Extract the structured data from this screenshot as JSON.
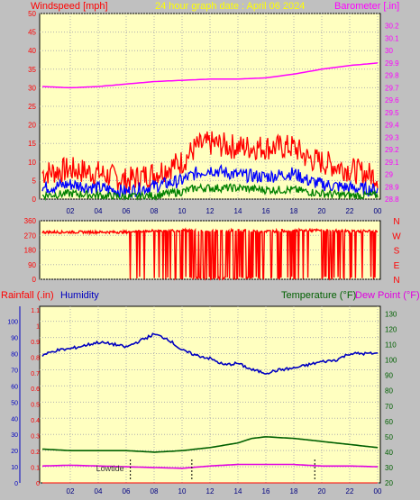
{
  "header": {
    "windspeed_label": "Windspeed [mph]",
    "date_label": "24 hour graph date : April 06 2024",
    "barometer_label": "Barometer [.in]"
  },
  "lower_header": {
    "rainfall_label": "Rainfall (.in)",
    "humidity_label": "Humidity",
    "temperature_label": "Temperature (°F)",
    "dewpoint_label": "Dew Point (°F)"
  },
  "colors": {
    "plot_bg": "#ffffc0",
    "frame": "#c0c0c0",
    "gust": "#ff0000",
    "avg": "#0000ff",
    "min": "#008000",
    "barometer": "#ff00ff",
    "humidity": "#0000c0",
    "temperature": "#006000",
    "dewpoint": "#e000e0",
    "title": "#ffff00"
  },
  "annotation": {
    "lowtide_label": "Lowtide"
  },
  "chart_data": [
    {
      "type": "line",
      "title": "24 hour graph date : April 06 2024",
      "x_tick_labels": [
        "02",
        "04",
        "06",
        "08",
        "10",
        "12",
        "14",
        "16",
        "18",
        "20",
        "22",
        "00"
      ],
      "y_left": {
        "label": "Windspeed [mph]",
        "range": [
          0,
          50
        ],
        "ticks": [
          "0",
          "5",
          "10",
          "15",
          "20",
          "25",
          "30",
          "35",
          "40",
          "45",
          "50"
        ]
      },
      "y_right": {
        "label": "Barometer [.in]",
        "range": [
          28.8,
          30.3
        ],
        "ticks": [
          "28.8",
          "28.9",
          "29",
          "29.1",
          "29.2",
          "29.3",
          "29.4",
          "29.5",
          "29.6",
          "29.7",
          "29.8",
          "29.9",
          "30",
          "30.1",
          "30.2"
        ]
      },
      "grid": true,
      "series": [
        {
          "name": "Gust",
          "axis": "left",
          "x": [
            0,
            2,
            4,
            6,
            8,
            10,
            11,
            12,
            14,
            16,
            18,
            19,
            20,
            22,
            24
          ],
          "y": [
            7,
            8,
            7,
            5,
            7,
            10,
            14,
            15,
            14,
            14,
            14,
            11,
            10,
            8,
            6
          ],
          "noise": 3.5
        },
        {
          "name": "Average",
          "axis": "left",
          "x": [
            0,
            2,
            4,
            6,
            8,
            10,
            11,
            12,
            14,
            16,
            18,
            19,
            20,
            22,
            24
          ],
          "y": [
            3,
            4,
            3,
            2,
            3.5,
            5,
            7,
            8,
            6.5,
            6,
            7,
            5,
            4,
            3,
            2.5
          ],
          "noise": 1.8
        },
        {
          "name": "Minimum",
          "axis": "left",
          "x": [
            0,
            2,
            4,
            6,
            8,
            10,
            11,
            12,
            14,
            16,
            18,
            19,
            20,
            22,
            24
          ],
          "y": [
            1,
            1.5,
            1,
            0.5,
            1,
            2,
            3,
            3,
            3,
            2.5,
            2.5,
            2,
            1.5,
            1,
            1
          ],
          "noise": 1.1
        },
        {
          "name": "Barometer",
          "axis": "right",
          "x": [
            0,
            2,
            4,
            6,
            8,
            10,
            12,
            14,
            16,
            18,
            20,
            22,
            24
          ],
          "y": [
            29.71,
            29.7,
            29.71,
            29.73,
            29.75,
            29.76,
            29.77,
            29.77,
            29.78,
            29.81,
            29.85,
            29.88,
            29.9
          ]
        }
      ]
    },
    {
      "type": "scatter",
      "title": "Wind direction",
      "x_tick_labels": [
        "02",
        "04",
        "06",
        "08",
        "10",
        "12",
        "14",
        "16",
        "18",
        "20",
        "22",
        "00"
      ],
      "y": {
        "range": [
          0,
          360
        ],
        "ticks": [
          "0",
          "90",
          "180",
          "270",
          "360"
        ]
      },
      "compass": [
        "N",
        "W",
        "S",
        "E",
        "N"
      ],
      "baseline_deg": 295,
      "series": [
        {
          "name": "Direction",
          "x": [
            0,
            6,
            6.5,
            9,
            10.5,
            12,
            14,
            16,
            18,
            20,
            22,
            24
          ],
          "y": [
            290,
            290,
            295,
            300,
            300,
            295,
            300,
            295,
            300,
            300,
            295,
            295
          ]
        }
      ]
    },
    {
      "type": "line",
      "x_tick_labels": [
        "02",
        "04",
        "06",
        "08",
        "10",
        "12",
        "14",
        "16",
        "18",
        "20",
        "22",
        "00"
      ],
      "y_outer_left": {
        "label": "Humidity",
        "range": [
          0,
          100
        ],
        "ticks": [
          "0",
          "10",
          "20",
          "30",
          "40",
          "50",
          "60",
          "70",
          "80",
          "90",
          "100"
        ]
      },
      "y_inner_left": {
        "label": "Rainfall (.in)",
        "range": [
          0,
          1.1
        ],
        "ticks": [
          "0",
          "0.1",
          "0.2",
          "0.3",
          "0.4",
          "0.5",
          "0.6",
          "0.7",
          "0.8",
          "0.9",
          "1",
          "1.1"
        ]
      },
      "y_right": {
        "label": "Temperature (°F)",
        "range": [
          20,
          135
        ],
        "ticks": [
          "20",
          "30",
          "40",
          "50",
          "60",
          "70",
          "80",
          "90",
          "100",
          "110",
          "120",
          "130"
        ]
      },
      "grid": true,
      "series": [
        {
          "name": "Humidity",
          "axis": "outer_left",
          "x": [
            0,
            1,
            2,
            3,
            4,
            5,
            6,
            7,
            8,
            9,
            10,
            11,
            12,
            13,
            14,
            15,
            16,
            17,
            18,
            19,
            20,
            21,
            22,
            23,
            24
          ],
          "y": [
            79,
            82,
            83,
            85,
            87,
            86,
            84,
            88,
            92,
            89,
            82,
            79,
            77,
            73,
            74,
            70,
            68,
            70,
            71,
            73,
            75,
            76,
            80,
            80,
            80
          ]
        },
        {
          "name": "Temperature",
          "axis": "right",
          "x": [
            0,
            2,
            4,
            6,
            8,
            10,
            12,
            14,
            15,
            16,
            18,
            20,
            22,
            24
          ],
          "y": [
            42,
            41,
            41,
            41,
            40,
            41,
            43,
            46,
            49,
            50,
            49,
            47,
            45,
            43
          ]
        },
        {
          "name": "Dew Point",
          "axis": "right",
          "x": [
            0,
            2,
            4,
            6,
            8,
            10,
            12,
            14,
            16,
            18,
            20,
            22,
            24
          ],
          "y": [
            31,
            31.5,
            31,
            30.5,
            30,
            29.5,
            31,
            32,
            32,
            32,
            31,
            31,
            30.5
          ]
        },
        {
          "name": "Rainfall",
          "axis": "inner_left",
          "x": [
            0,
            24
          ],
          "y": [
            0,
            0
          ]
        }
      ],
      "tide_markers_hour": [
        6.3,
        10.7,
        19.5
      ],
      "lowtide_hour": 6.3
    }
  ]
}
